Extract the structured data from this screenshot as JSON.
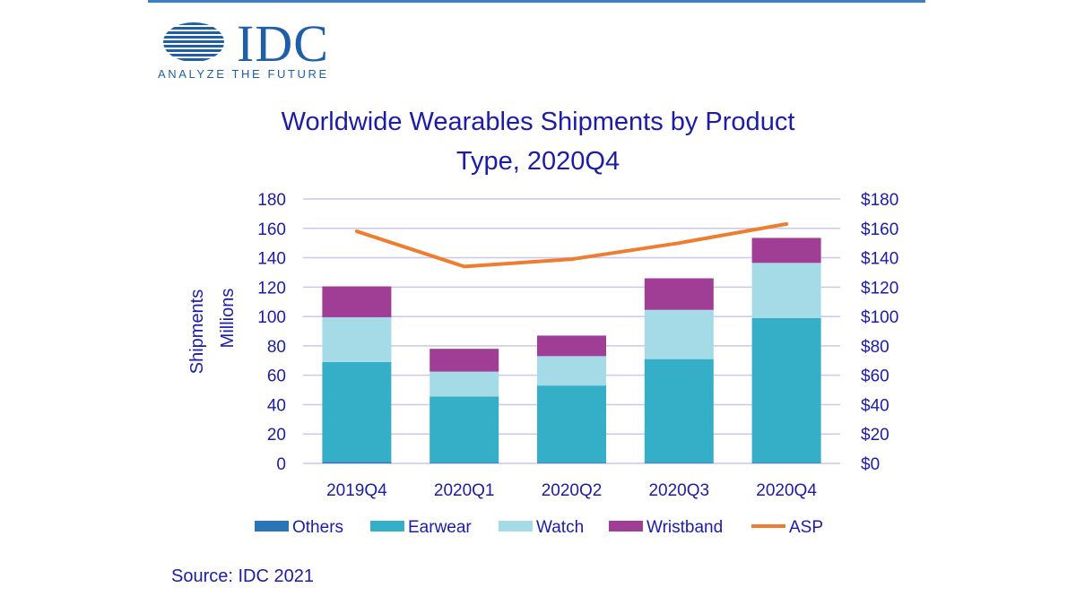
{
  "header": {
    "logo_text": "IDC",
    "logo_tagline": "ANALYZE THE FUTURE"
  },
  "footer": {
    "source": "Source: IDC 2021"
  },
  "colors": {
    "others": "#2a74b8",
    "earwear": "#35aec8",
    "watch": "#a4dbe6",
    "wristband": "#a03d95",
    "asp": "#ee7d2f",
    "text": "#1c1ca8",
    "grid": "#c8c8f0"
  },
  "chart_data": {
    "type": "bar",
    "stacked": true,
    "title": "Worldwide Wearables Shipments by Product Type, 2020Q4",
    "title_lines": [
      "Worldwide Wearables Shipments by Product",
      "Type, 2020Q4"
    ],
    "categories": [
      "2019Q4",
      "2020Q1",
      "2020Q2",
      "2020Q3",
      "2020Q4"
    ],
    "ylabel": "Shipments",
    "ylabel_units": "Millions",
    "ylim": [
      0,
      180
    ],
    "yticks": [
      "0",
      "20",
      "40",
      "60",
      "80",
      "100",
      "120",
      "140",
      "160",
      "180"
    ],
    "y2lim": [
      0,
      180
    ],
    "y2ticks": [
      "$0",
      "$20",
      "$40",
      "$60",
      "$80",
      "$100",
      "$120",
      "$140",
      "$160",
      "$180"
    ],
    "grid": true,
    "legend_position": "bottom",
    "series": [
      {
        "name": "Others",
        "type": "bar",
        "values": [
          1,
          0.5,
          0.5,
          0.5,
          0.5
        ]
      },
      {
        "name": "Earwear",
        "type": "bar",
        "values": [
          68,
          45,
          52.5,
          70.5,
          98.5
        ]
      },
      {
        "name": "Watch",
        "type": "bar",
        "values": [
          30.5,
          17,
          20,
          33.5,
          37.5
        ]
      },
      {
        "name": "Wristband",
        "type": "bar",
        "values": [
          21,
          15.5,
          14,
          21.5,
          17
        ]
      },
      {
        "name": "ASP",
        "type": "line",
        "axis": "right",
        "values": [
          158,
          134,
          139,
          150,
          163
        ]
      }
    ]
  }
}
